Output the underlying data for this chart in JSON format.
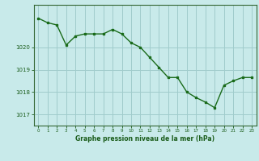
{
  "x": [
    0,
    1,
    2,
    3,
    4,
    5,
    6,
    7,
    8,
    9,
    10,
    11,
    12,
    13,
    14,
    15,
    16,
    17,
    18,
    19,
    20,
    21,
    22,
    23
  ],
  "y": [
    1021.3,
    1021.1,
    1021.0,
    1020.1,
    1020.5,
    1020.6,
    1020.6,
    1020.6,
    1020.8,
    1020.6,
    1020.2,
    1020.0,
    1019.55,
    1019.1,
    1018.65,
    1018.65,
    1018.0,
    1017.75,
    1017.55,
    1017.3,
    1018.3,
    1018.5,
    1018.65,
    1018.65
  ],
  "line_color": "#1a6b1a",
  "marker_color": "#1a6b1a",
  "bg_color": "#c8eaea",
  "grid_color": "#a0cccc",
  "axis_color": "#336633",
  "text_color": "#1a5c1a",
  "xlabel": "Graphe pression niveau de la mer (hPa)",
  "yticks": [
    1017,
    1018,
    1019,
    1020
  ],
  "ylim": [
    1016.5,
    1021.9
  ],
  "xlim": [
    -0.5,
    23.5
  ],
  "xticks": [
    0,
    1,
    2,
    3,
    4,
    5,
    6,
    7,
    8,
    9,
    10,
    11,
    12,
    13,
    14,
    15,
    16,
    17,
    18,
    19,
    20,
    21,
    22,
    23
  ]
}
